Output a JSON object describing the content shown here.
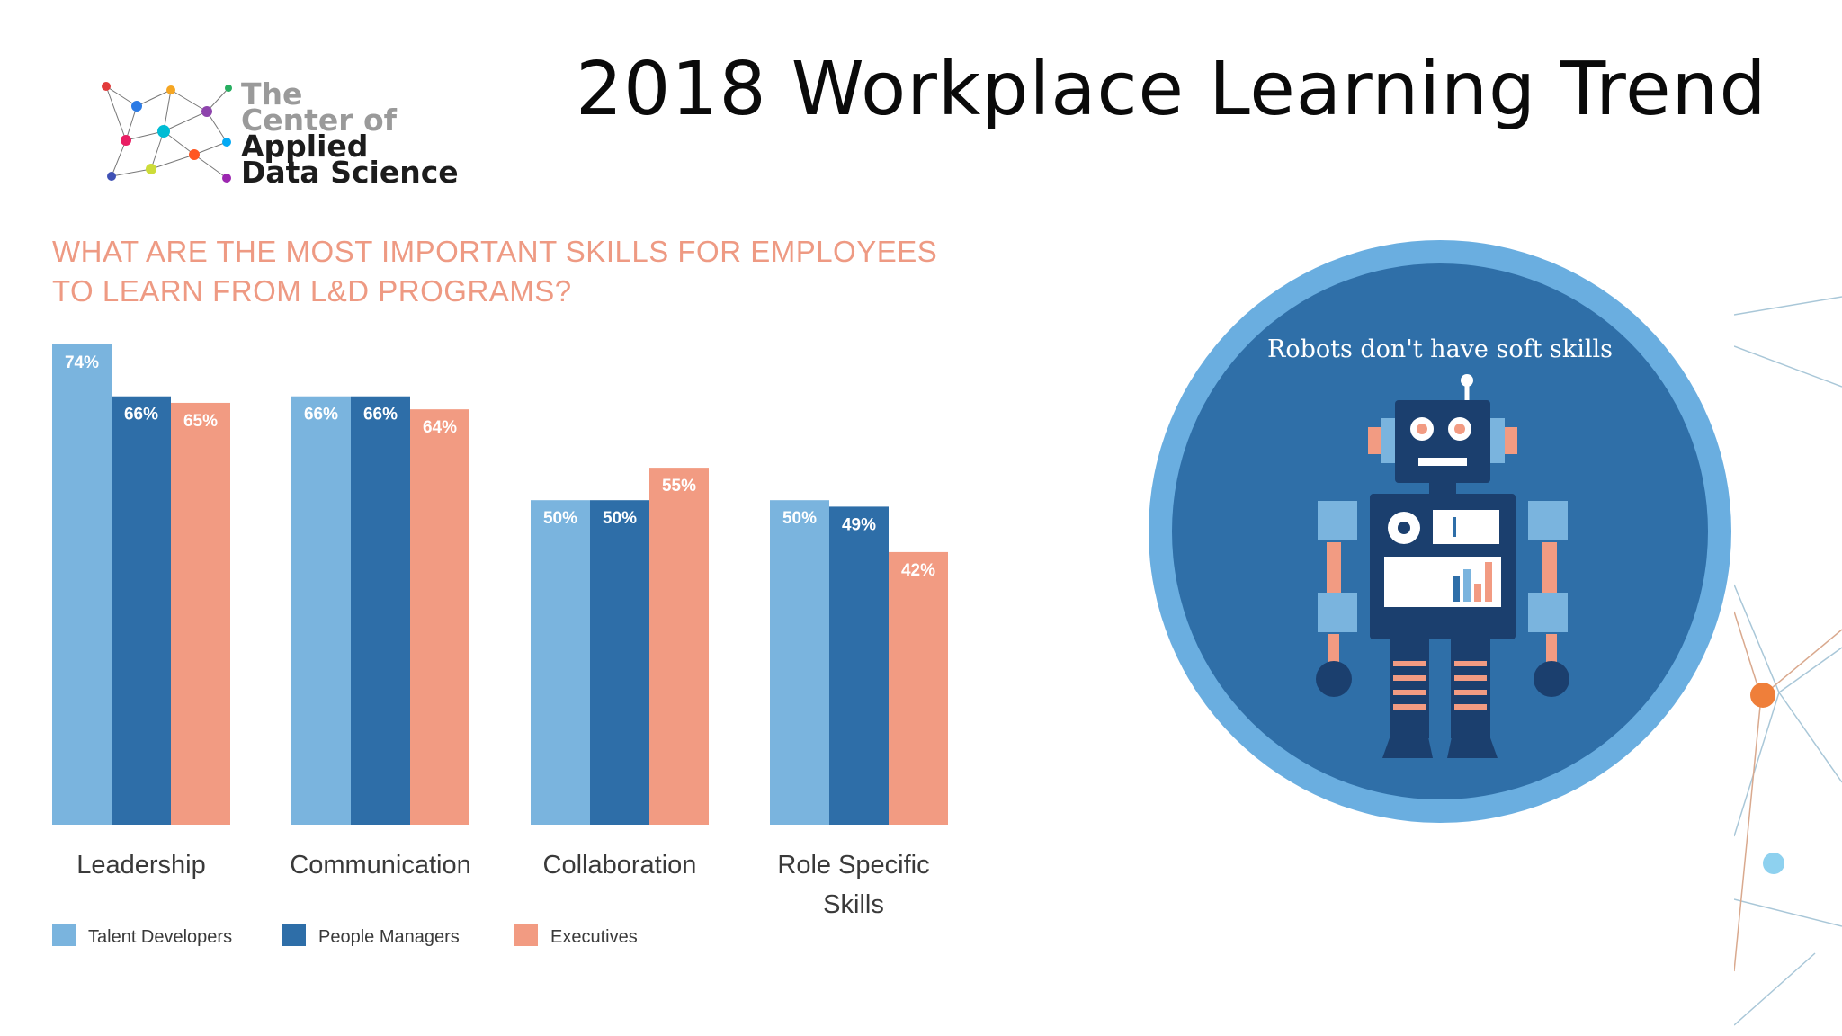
{
  "slide": {
    "title": "2018 Workplace Learning Trend"
  },
  "logo": {
    "line1": "The",
    "line2": "Center of",
    "line3": "Applied",
    "line4": "Data Science"
  },
  "illustration": {
    "caption": "Robots don't have soft skills"
  },
  "colors": {
    "talent": "#7ab4de",
    "managers": "#2e6ea8",
    "executives": "#f29b82",
    "circle_outer": "#6aaee0",
    "circle_inner": "#2f6fa8",
    "question_text": "#ee9a83"
  },
  "chart_data": {
    "type": "bar",
    "title": "WHAT ARE THE MOST IMPORTANT SKILLS FOR EMPLOYEES TO LEARN FROM L&D PROGRAMS?",
    "title_lines": [
      "WHAT ARE THE MOST IMPORTANT SKILLS FOR EMPLOYEES",
      "TO LEARN FROM L&D PROGRAMS?"
    ],
    "categories": [
      "Leadership",
      "Communication",
      "Collaboration",
      "Role Specific Skills"
    ],
    "category_lines": [
      [
        "Leadership"
      ],
      [
        "Communication"
      ],
      [
        "Collaboration"
      ],
      [
        "Role Specific",
        "Skills"
      ]
    ],
    "series": [
      {
        "name": "Talent Developers",
        "values": [
          74,
          66,
          50,
          50
        ],
        "labels": [
          "74%",
          "66%",
          "50%",
          "50%"
        ],
        "color": "#7ab4de"
      },
      {
        "name": "People Managers",
        "values": [
          66,
          66,
          50,
          49
        ],
        "labels": [
          "66%",
          "66%",
          "50%",
          "49%"
        ],
        "color": "#2e6ea8"
      },
      {
        "name": "Executives",
        "values": [
          65,
          64,
          55,
          42
        ],
        "labels": [
          "65%",
          "64%",
          "55%",
          "42%"
        ],
        "color": "#f29b82"
      }
    ],
    "unit": "%",
    "ylim": [
      0,
      74
    ],
    "grid": false,
    "legend_position": "bottom-left"
  }
}
